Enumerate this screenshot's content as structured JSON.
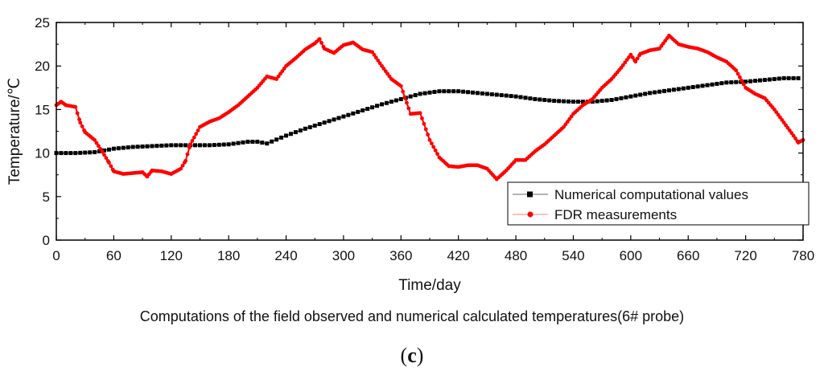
{
  "chart_data": {
    "type": "line",
    "title": "",
    "caption": "Computations of the field observed and numerical calculated temperatures(6# probe)",
    "panel_label_open": "(",
    "panel_label_letter": "c",
    "panel_label_close": ")",
    "xlabel": "Time/day",
    "ylabel": "Temperature/℃",
    "xlim": [
      0,
      780
    ],
    "ylim": [
      0,
      25
    ],
    "xticks": [
      0,
      60,
      120,
      180,
      240,
      300,
      360,
      420,
      480,
      540,
      600,
      660,
      720,
      780
    ],
    "yticks": [
      0,
      5,
      10,
      15,
      20,
      25
    ],
    "legend_position": "bottom-right",
    "series": [
      {
        "name": "Numerical computational values",
        "color": "#000000",
        "marker": "square",
        "x": [
          0,
          20,
          40,
          60,
          80,
          100,
          120,
          140,
          160,
          180,
          200,
          210,
          220,
          240,
          260,
          280,
          300,
          320,
          340,
          360,
          380,
          400,
          420,
          440,
          460,
          480,
          500,
          520,
          540,
          560,
          580,
          600,
          620,
          640,
          660,
          680,
          700,
          720,
          740,
          760,
          775
        ],
        "y": [
          10.0,
          10.0,
          10.1,
          10.5,
          10.7,
          10.8,
          10.9,
          10.9,
          10.9,
          11.0,
          11.3,
          11.3,
          11.1,
          12.0,
          12.8,
          13.5,
          14.2,
          14.9,
          15.6,
          16.2,
          16.8,
          17.1,
          17.1,
          16.9,
          16.7,
          16.5,
          16.2,
          16.0,
          15.9,
          15.9,
          16.1,
          16.5,
          16.9,
          17.2,
          17.5,
          17.8,
          18.1,
          18.2,
          18.4,
          18.6,
          18.6
        ]
      },
      {
        "name": "FDR measurements",
        "color": "#ff0000",
        "marker": "circle",
        "x": [
          0,
          5,
          10,
          20,
          25,
          30,
          40,
          50,
          55,
          60,
          70,
          80,
          90,
          95,
          100,
          110,
          120,
          130,
          135,
          140,
          150,
          160,
          170,
          180,
          190,
          200,
          210,
          220,
          230,
          240,
          250,
          260,
          270,
          275,
          280,
          290,
          300,
          310,
          320,
          330,
          340,
          350,
          360,
          370,
          380,
          390,
          400,
          410,
          420,
          430,
          440,
          450,
          460,
          470,
          480,
          490,
          500,
          510,
          520,
          530,
          540,
          550,
          560,
          570,
          580,
          590,
          600,
          605,
          610,
          620,
          630,
          640,
          650,
          660,
          670,
          680,
          690,
          700,
          710,
          720,
          730,
          740,
          750,
          760,
          770,
          775,
          780
        ],
        "y": [
          15.5,
          15.9,
          15.5,
          15.3,
          13.5,
          12.4,
          11.5,
          9.8,
          8.9,
          7.9,
          7.6,
          7.7,
          7.8,
          7.3,
          8.0,
          7.9,
          7.6,
          8.2,
          9.1,
          11.0,
          13.0,
          13.6,
          14.0,
          14.7,
          15.5,
          16.5,
          17.5,
          18.8,
          18.5,
          20.0,
          20.9,
          21.9,
          22.6,
          23.1,
          22.0,
          21.5,
          22.4,
          22.7,
          21.9,
          21.6,
          20.0,
          18.5,
          17.7,
          14.5,
          14.6,
          11.5,
          9.5,
          8.5,
          8.4,
          8.6,
          8.6,
          8.2,
          7.0,
          8.0,
          9.2,
          9.2,
          10.2,
          11.0,
          12.0,
          13.0,
          14.5,
          15.5,
          16.2,
          17.5,
          18.5,
          19.8,
          21.3,
          20.5,
          21.4,
          21.8,
          22.0,
          23.5,
          22.5,
          22.2,
          22.0,
          21.6,
          21.0,
          20.5,
          19.5,
          17.5,
          16.8,
          16.3,
          15.0,
          13.5,
          12.0,
          11.2,
          11.5
        ]
      }
    ]
  }
}
